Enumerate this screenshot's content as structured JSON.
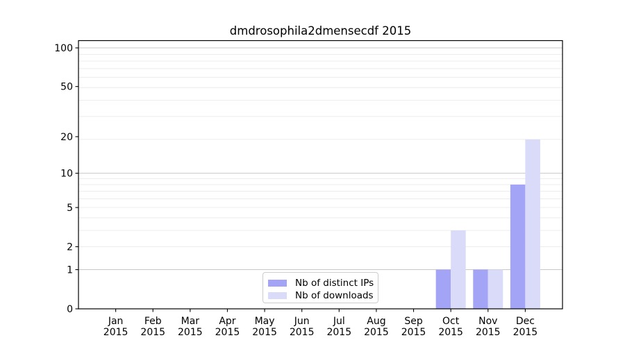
{
  "chart_data": {
    "type": "bar",
    "title": "dmdrosophila2dmensecdf 2015",
    "categories": [
      "Jan",
      "Feb",
      "Mar",
      "Apr",
      "May",
      "Jun",
      "Jul",
      "Aug",
      "Sep",
      "Oct",
      "Nov",
      "Dec"
    ],
    "x_tick_second_line": "2015",
    "series": [
      {
        "name": "Nb of distinct IPs",
        "color": "#a4a4f6",
        "values": [
          0,
          0,
          0,
          0,
          0,
          0,
          0,
          0,
          0,
          1,
          1,
          8
        ]
      },
      {
        "name": "Nb of downloads",
        "color": "#dadaf9",
        "values": [
          0,
          0,
          0,
          0,
          0,
          0,
          0,
          0,
          0,
          3,
          1,
          19
        ]
      }
    ],
    "yscale": "log1p",
    "yticks": [
      0,
      1,
      2,
      5,
      10,
      20,
      50,
      100
    ],
    "ylim": [
      0,
      110
    ],
    "grid": {
      "show": true,
      "major_values": [
        1,
        10,
        100
      ],
      "minor_values": [
        1,
        2,
        3,
        4,
        5,
        6,
        7,
        8,
        9,
        19,
        29,
        39,
        49,
        59,
        69,
        79,
        89
      ]
    },
    "legend": {
      "position": "lower center"
    },
    "colors": {
      "grid_major": "#c8c8c8",
      "grid_minor": "#ececec",
      "axis": "#000000",
      "text": "#000000",
      "background": "#ffffff"
    }
  }
}
